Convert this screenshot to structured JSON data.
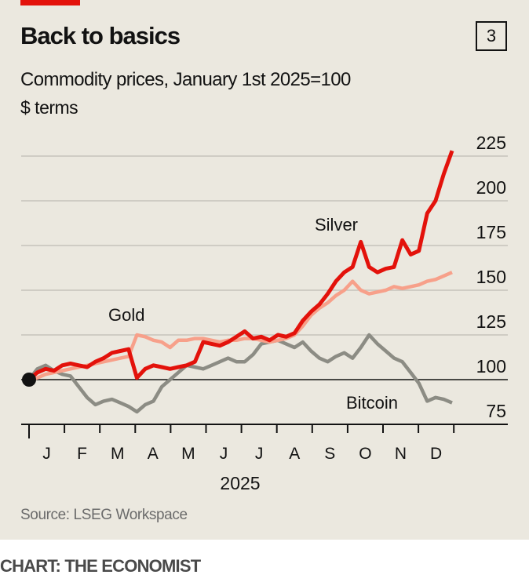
{
  "chart_number": "3",
  "source": "Source: LSEG Workspace",
  "credit": "CHART: THE ECONOMIST",
  "chart_data": {
    "type": "line",
    "title": "Back to basics",
    "subtitle": "Commodity prices, January 1st 2025=100",
    "unit_label": "$ terms",
    "xlabel": "2025",
    "ylabel": "",
    "x_unit": "week of year (2025)",
    "x_ticks": [
      "J",
      "F",
      "M",
      "A",
      "M",
      "J",
      "J",
      "A",
      "S",
      "O",
      "N",
      "D"
    ],
    "y_ticks": [
      75,
      100,
      125,
      150,
      175,
      200,
      225
    ],
    "ylim": [
      75,
      235
    ],
    "xlim": [
      0,
      52
    ],
    "grid": true,
    "baseline": 100,
    "start_marker_value": 100,
    "series": [
      {
        "name": "Bitcoin",
        "color": "#8c8c84",
        "values": [
          100,
          106,
          108,
          105,
          103,
          102,
          96,
          90,
          86,
          88,
          89,
          87,
          85,
          82,
          86,
          88,
          96,
          100,
          104,
          108,
          107,
          106,
          108,
          110,
          112,
          110,
          110,
          114,
          120,
          121,
          122,
          120,
          118,
          121,
          116,
          112,
          110,
          113,
          115,
          112,
          118,
          125,
          120,
          116,
          112,
          110,
          104,
          98,
          88,
          90,
          89,
          87
        ]
      },
      {
        "name": "Gold",
        "color": "#f7a08a",
        "values": [
          100,
          101,
          103,
          104,
          105,
          106,
          107,
          108,
          109,
          110,
          111,
          112,
          113,
          125,
          124,
          122,
          121,
          118,
          122,
          122,
          123,
          123,
          122,
          121,
          122,
          122,
          123,
          123,
          122,
          121,
          122,
          123,
          125,
          130,
          136,
          140,
          143,
          147,
          150,
          155,
          150,
          148,
          149,
          150,
          152,
          151,
          152,
          153,
          155,
          156,
          158,
          160
        ]
      },
      {
        "name": "Silver",
        "color": "#e3120b",
        "values": [
          100,
          104,
          106,
          105,
          108,
          109,
          108,
          107,
          110,
          112,
          115,
          116,
          117,
          101,
          106,
          108,
          107,
          106,
          107,
          108,
          110,
          121,
          120,
          119,
          121,
          124,
          127,
          123,
          124,
          122,
          125,
          124,
          126,
          133,
          138,
          142,
          148,
          155,
          160,
          163,
          177,
          163,
          160,
          162,
          163,
          178,
          170,
          172,
          193,
          200,
          215,
          228
        ]
      }
    ]
  }
}
